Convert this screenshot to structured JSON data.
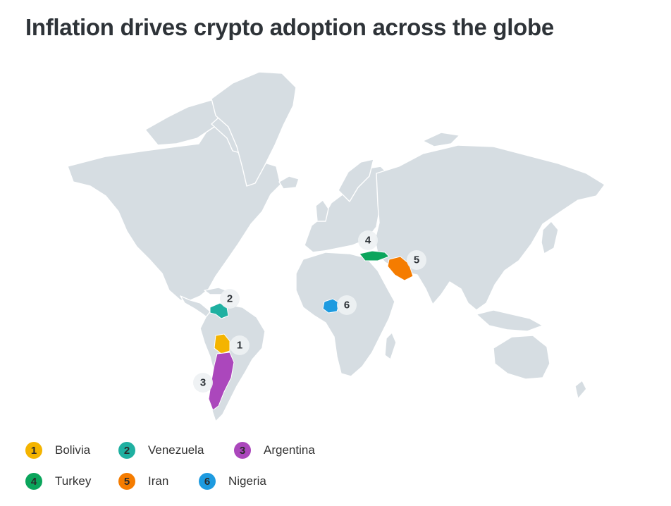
{
  "title": "Inflation drives crypto adoption across the globe",
  "colors": {
    "land": "#d6dde2",
    "borders": "#ffffff",
    "bolivia": "#f4b400",
    "venezuela": "#1fb0a1",
    "argentina": "#ab47bc",
    "turkey": "#0ba55c",
    "iran": "#f57c00",
    "nigeria": "#1e9be0"
  },
  "markers": [
    {
      "rank": "1",
      "country": "Bolivia",
      "color": "#f4b400"
    },
    {
      "rank": "2",
      "country": "Venezuela",
      "color": "#1fb0a1"
    },
    {
      "rank": "3",
      "country": "Argentina",
      "color": "#ab47bc"
    },
    {
      "rank": "4",
      "country": "Turkey",
      "color": "#0ba55c"
    },
    {
      "rank": "5",
      "country": "Iran",
      "color": "#f57c00"
    },
    {
      "rank": "6",
      "country": "Nigeria",
      "color": "#1e9be0"
    }
  ],
  "legend": [
    {
      "rank": "1",
      "label": "Bolivia",
      "color": "#f4b400"
    },
    {
      "rank": "2",
      "label": "Venezuela",
      "color": "#1fb0a1"
    },
    {
      "rank": "3",
      "label": "Argentina",
      "color": "#ab47bc"
    },
    {
      "rank": "4",
      "label": "Turkey",
      "color": "#0ba55c"
    },
    {
      "rank": "5",
      "label": "Iran",
      "color": "#f57c00"
    },
    {
      "rank": "6",
      "label": "Nigeria",
      "color": "#1e9be0"
    }
  ]
}
